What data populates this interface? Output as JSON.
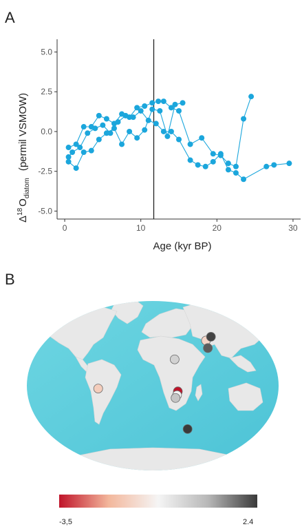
{
  "panel_a": {
    "label": "A"
  },
  "panel_b": {
    "label": "B"
  },
  "chart_data": [
    {
      "type": "line",
      "markers": true,
      "xlabel": "Age (kyr BP)",
      "ylabel": "Δ18 Odiatom (permil VSMOW)",
      "ylabel_parts": {
        "delta": "Δ",
        "sup": "18",
        "base": "O",
        "sub": "diatom",
        "rest": "(permil VSMOW)"
      },
      "xlim": [
        -1,
        31
      ],
      "ylim": [
        -5.5,
        5.8
      ],
      "xticks": [
        0,
        10,
        20,
        30
      ],
      "yticks": [
        5.0,
        2.5,
        0.0,
        -2.5,
        -5.0
      ],
      "ytick_labels": [
        "5.0",
        "2.5",
        "0.0",
        "-2.5",
        "-5.0"
      ],
      "vertical_line_x": 11.7,
      "grid": false,
      "color": "#1ba6dc",
      "series": [
        {
          "x": [
            0.5,
            1.5,
            2.5,
            3.5,
            4.5,
            5.5,
            6.5,
            7.5,
            8.5,
            9.5,
            10.5,
            11.5,
            12.3,
            13.0,
            14.0,
            15.0,
            16.5,
            18.0,
            19.5,
            20.5,
            21.5,
            22.5,
            23.5,
            24.5
          ],
          "y": [
            -1.0,
            -0.8,
            0.3,
            0.3,
            1.0,
            0.8,
            0.5,
            1.1,
            0.9,
            1.5,
            1.6,
            1.8,
            1.9,
            1.9,
            1.5,
            1.3,
            -0.8,
            -0.4,
            -1.4,
            -1.5,
            -2.0,
            -2.2,
            0.8,
            2.2
          ]
        },
        {
          "x": [
            0.5,
            1.0,
            2.0,
            3.0,
            4.0,
            5.0,
            6.0,
            7.0,
            8.0,
            9.0,
            10.0,
            11.0,
            12.0,
            13.0,
            14.0,
            15.0,
            16.5,
            17.5,
            18.5,
            19.5,
            20.5,
            21.5,
            22.5,
            23.5,
            26.5,
            27.5,
            29.5
          ],
          "y": [
            -1.6,
            -1.3,
            -1.0,
            -0.1,
            0.2,
            0.4,
            -0.1,
            0.6,
            1.0,
            0.9,
            1.3,
            0.7,
            0.5,
            0.0,
            0.0,
            -0.5,
            -1.8,
            -2.1,
            -2.2,
            -1.9,
            -1.4,
            -2.4,
            -2.6,
            -3.0,
            -2.2,
            -2.1,
            -2.0
          ]
        },
        {
          "x": [
            0.5,
            1.5,
            2.5,
            3.5,
            4.5,
            5.5,
            6.5,
            7.5,
            8.5,
            9.5,
            10.5,
            11.5,
            12.5,
            13.5,
            14.5,
            15.5
          ],
          "y": [
            -1.9,
            -2.3,
            -1.3,
            -1.2,
            -0.5,
            -0.1,
            0.2,
            -0.8,
            0.0,
            -0.4,
            0.1,
            1.4,
            1.3,
            -0.3,
            1.7,
            1.8
          ]
        }
      ]
    },
    {
      "type": "map",
      "colorbar": {
        "min": -3.5,
        "max": 2.4,
        "min_label": "-3,5",
        "max_label": "2.4",
        "colors": [
          "#c0142a",
          "#f3b79c",
          "#f5f5f5",
          "#b8b8b8",
          "#3a3a3a"
        ]
      },
      "sites": [
        {
          "lon": -78,
          "lat": -3,
          "value": -1.5
        },
        {
          "lon": 33,
          "lat": 28,
          "value": 0.3
        },
        {
          "lon": 90,
          "lat": 48,
          "value": -1.3
        },
        {
          "lon": 102,
          "lat": 52,
          "value": 2.3
        },
        {
          "lon": 88,
          "lat": 40,
          "value": 2.0
        },
        {
          "lon": 36,
          "lat": -6,
          "value": -3.5
        },
        {
          "lon": 35,
          "lat": -10,
          "value": -0.5
        },
        {
          "lon": 33,
          "lat": -13,
          "value": 0.6
        },
        {
          "lon": 58,
          "lat": -46,
          "value": 2.4
        }
      ]
    }
  ]
}
